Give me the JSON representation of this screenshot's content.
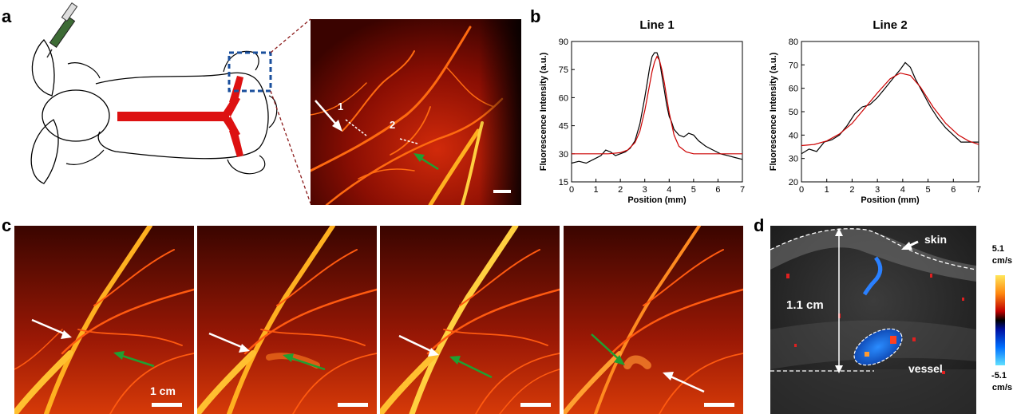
{
  "panels": {
    "a": {
      "letter": "a",
      "labels": [
        "1",
        "2"
      ]
    },
    "b": {
      "letter": "b"
    },
    "c": {
      "letter": "c",
      "scale_label": "1 cm"
    },
    "d": {
      "letter": "d",
      "skin_label": "skin",
      "depth_label": "1.1 cm",
      "vessel_label": "vessel",
      "colorbar_max_value": "5.1",
      "colorbar_max_unit": "cm/s",
      "colorbar_min_value": "-5.1",
      "colorbar_min_unit": "cm/s"
    }
  },
  "chart_data": [
    {
      "type": "line",
      "title": "Line 1",
      "xlabel": "Position (mm)",
      "ylabel": "Fluorescence Intensity (a.u.)",
      "xlim": [
        0,
        7
      ],
      "ylim": [
        15,
        90
      ],
      "xticks": [
        "0",
        "1",
        "2",
        "3",
        "4",
        "5",
        "6",
        "7"
      ],
      "yticks": [
        "15",
        "30",
        "45",
        "60",
        "75",
        "90"
      ],
      "series": [
        {
          "color": "#000000",
          "x": [
            0,
            0.3,
            0.6,
            0.9,
            1.2,
            1.4,
            1.6,
            1.8,
            2.0,
            2.2,
            2.4,
            2.6,
            2.8,
            3.0,
            3.1,
            3.2,
            3.3,
            3.4,
            3.5,
            3.6,
            3.7,
            3.8,
            3.9,
            4.0,
            4.1,
            4.2,
            4.4,
            4.6,
            4.8,
            5.0,
            5.2,
            5.5,
            5.8,
            6.1,
            6.4,
            6.7,
            7.0
          ],
          "y": [
            25,
            26,
            25,
            27,
            29,
            32,
            31,
            29,
            30,
            31,
            33,
            37,
            46,
            60,
            68,
            76,
            82,
            84,
            84,
            80,
            72,
            64,
            56,
            50,
            47,
            43,
            40,
            39,
            41,
            40,
            37,
            34,
            32,
            30,
            29,
            28,
            27
          ]
        },
        {
          "color": "#cc0000",
          "x": [
            0,
            0.5,
            1.0,
            1.5,
            2.0,
            2.3,
            2.6,
            2.8,
            3.0,
            3.1,
            3.2,
            3.3,
            3.4,
            3.5,
            3.6,
            3.7,
            3.8,
            3.9,
            4.0,
            4.2,
            4.4,
            4.7,
            5.0,
            5.5,
            6.0,
            6.5,
            7.0
          ],
          "y": [
            30,
            30,
            30,
            30,
            30.6,
            32,
            36,
            42,
            53,
            60,
            67,
            74,
            79,
            82,
            80,
            75,
            68,
            60,
            52,
            40,
            34,
            31,
            30,
            30,
            30,
            30,
            30
          ]
        }
      ]
    },
    {
      "type": "line",
      "title": "Line 2",
      "xlabel": "Position (mm)",
      "ylabel": "Fluorescence Intensity (a.u.)",
      "xlim": [
        0,
        7
      ],
      "ylim": [
        20,
        80
      ],
      "xticks": [
        "0",
        "1",
        "2",
        "3",
        "4",
        "5",
        "6",
        "7"
      ],
      "yticks": [
        "20",
        "30",
        "40",
        "50",
        "60",
        "70",
        "80"
      ],
      "series": [
        {
          "color": "#000000",
          "x": [
            0,
            0.3,
            0.6,
            0.9,
            1.2,
            1.5,
            1.8,
            2.1,
            2.4,
            2.7,
            3.0,
            3.3,
            3.6,
            3.9,
            4.1,
            4.3,
            4.5,
            4.8,
            5.1,
            5.4,
            5.7,
            6.0,
            6.3,
            6.6,
            7.0
          ],
          "y": [
            32,
            34,
            33,
            37,
            38,
            40,
            44,
            49,
            52,
            53,
            56,
            60,
            64,
            68,
            71,
            69,
            64,
            58,
            52,
            47,
            43,
            40,
            37,
            37,
            37
          ]
        },
        {
          "color": "#cc0000",
          "x": [
            0,
            0.5,
            1.0,
            1.5,
            2.0,
            2.5,
            3.0,
            3.5,
            3.9,
            4.3,
            4.7,
            5.2,
            5.7,
            6.2,
            6.6,
            7.0
          ],
          "y": [
            35.5,
            36,
            37.5,
            40.5,
            45,
            51.5,
            58,
            64,
            66.5,
            65.5,
            60.5,
            52,
            45,
            40,
            37.5,
            36
          ]
        }
      ]
    }
  ]
}
